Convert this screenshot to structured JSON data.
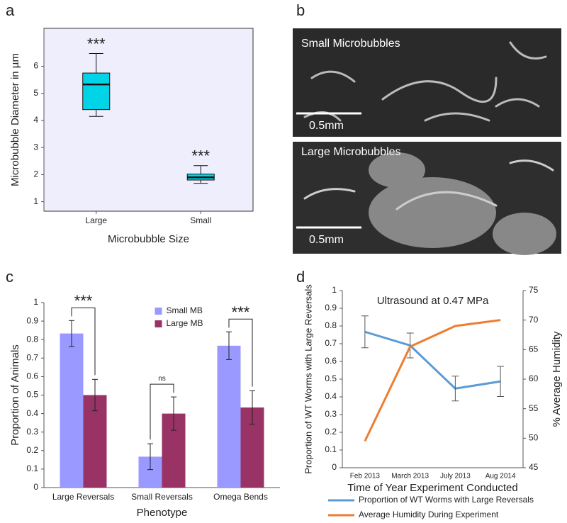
{
  "panel_labels": [
    "a",
    "b",
    "c",
    "d"
  ],
  "images": [
    {
      "title": "Small Microbubbles",
      "scale_bar": "0.5mm"
    },
    {
      "title": "Large Microbubbles",
      "scale_bar": "0.5mm"
    }
  ],
  "chart_data": [
    {
      "type": "box",
      "xlabel": "Microbubble Size",
      "ylabel": "Microbubble Diameter in µm",
      "categories": [
        "Large",
        "Small"
      ],
      "boxes": [
        {
          "min": 4.15,
          "q1": 4.4,
          "median": 5.33,
          "q3": 5.75,
          "max": 6.47
        },
        {
          "min": 1.68,
          "q1": 1.8,
          "median": 1.9,
          "q3": 2.02,
          "max": 2.33
        }
      ],
      "annotations": [
        "***",
        "***"
      ],
      "color": "#00d4e6",
      "background": "#eeeefc",
      "ylim": [
        0.65,
        7.4
      ],
      "yticks": [
        1,
        2,
        3,
        4,
        5,
        6
      ]
    },
    {
      "type": "bar",
      "xlabel": "Phenotype",
      "ylabel": "Proportion of Animals",
      "categories": [
        "Large Reversals",
        "Small Reversals",
        "Omega Bends"
      ],
      "series": [
        {
          "name": "Small MB",
          "color": "#9999ff",
          "values": [
            0.833,
            0.167,
            0.767
          ],
          "errors": [
            0.07,
            0.07,
            0.075
          ]
        },
        {
          "name": "Large MB",
          "color": "#993366",
          "values": [
            0.5,
            0.4,
            0.433
          ],
          "errors": [
            0.085,
            0.09,
            0.09
          ]
        }
      ],
      "significance": [
        "***",
        "ns",
        "***"
      ],
      "ylim": [
        0,
        1
      ],
      "yticks": [
        0,
        0.1,
        0.2,
        0.3,
        0.4,
        0.5,
        0.6,
        0.7,
        0.8,
        0.9,
        1
      ],
      "legend": "top"
    },
    {
      "type": "line",
      "title": "Ultrasound at 0.47 MPa",
      "xlabel": "Time of Year Experiment Conducted",
      "ylabel": "Proportion of WT Worms with Large Reversals",
      "y2label": "% Average Humidity",
      "categories": [
        "Feb 2013",
        "March 2013",
        "July 2013",
        "Aug 2014"
      ],
      "series": [
        {
          "name": "Proportion of WT Worms with Large Reversals",
          "color": "#5b9bd5",
          "values": [
            0.767,
            0.69,
            0.447,
            0.487
          ],
          "errors": [
            0.09,
            0.07,
            0.07,
            0.085
          ]
        },
        {
          "name": "Average Humidity During Experiment",
          "color": "#ed7d31",
          "values": [
            49.5,
            65.5,
            69,
            70
          ],
          "axis": "y2"
        }
      ],
      "ylim": [
        0,
        1
      ],
      "yticks": [
        0,
        0.1,
        0.2,
        0.3,
        0.4,
        0.5,
        0.6,
        0.7,
        0.8,
        0.9,
        1
      ],
      "y2lim": [
        45,
        75
      ],
      "y2ticks": [
        45,
        50,
        55,
        60,
        65,
        70,
        75
      ],
      "legend": "bottom"
    }
  ]
}
